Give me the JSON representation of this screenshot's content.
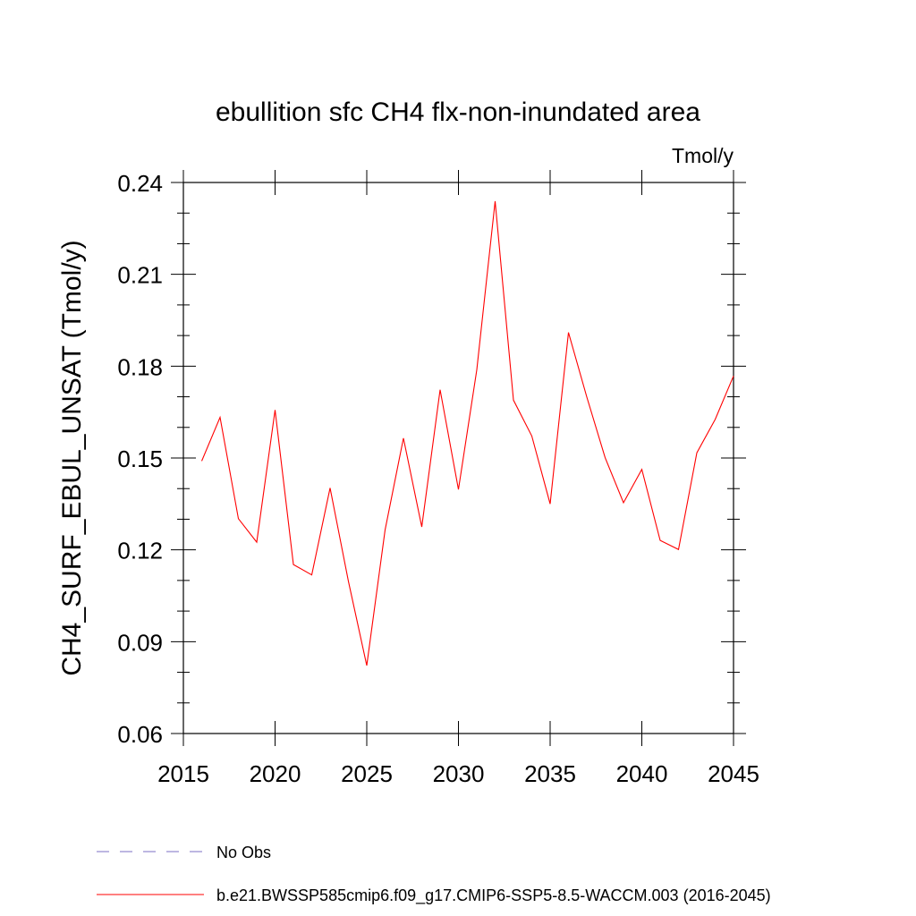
{
  "chart_data": {
    "type": "line",
    "title": "ebullition sfc CH4 flx-non-inundated area",
    "units_label": "Tmol/y",
    "ylabel": "CH4_SURF_EBUL_UNSAT  (Tmol/y)",
    "xlabel": "",
    "xlim": [
      2015,
      2045
    ],
    "ylim": [
      0.06,
      0.24
    ],
    "x_ticks": [
      2015,
      2020,
      2025,
      2030,
      2035,
      2040,
      2045
    ],
    "y_ticks": [
      0.06,
      0.09,
      0.12,
      0.15,
      0.18,
      0.21,
      0.24
    ],
    "y_tick_labels": [
      "0.06",
      "0.09",
      "0.12",
      "0.15",
      "0.18",
      "0.21",
      "0.24"
    ],
    "grid": false,
    "legend_position": "bottom",
    "series": [
      {
        "name": "b.e21.BWSSP585cmip6.f09_g17.CMIP6-SSP5-8.5-WACCM.003 (2016-2045)",
        "color": "#ff0000",
        "line_style": "solid",
        "x": [
          2016,
          2017,
          2018,
          2019,
          2020,
          2021,
          2022,
          2023,
          2024,
          2025,
          2026,
          2027,
          2028,
          2029,
          2030,
          2031,
          2032,
          2033,
          2034,
          2035,
          2036,
          2037,
          2038,
          2039,
          2040,
          2041,
          2042,
          2043,
          2044,
          2045
        ],
        "values": [
          0.149,
          0.1633,
          0.1302,
          0.1225,
          0.1657,
          0.1152,
          0.1118,
          0.1402,
          0.1097,
          0.0822,
          0.1265,
          0.1565,
          0.1275,
          0.1723,
          0.1397,
          0.1788,
          0.2339,
          0.1689,
          0.1572,
          0.135,
          0.191,
          0.1699,
          0.1501,
          0.1354,
          0.1463,
          0.1231,
          0.1201,
          0.1517,
          0.1626,
          0.1768
        ]
      },
      {
        "name": "No Obs",
        "color": "#7b6fc4",
        "line_style": "dashed",
        "x": [],
        "values": []
      }
    ]
  }
}
